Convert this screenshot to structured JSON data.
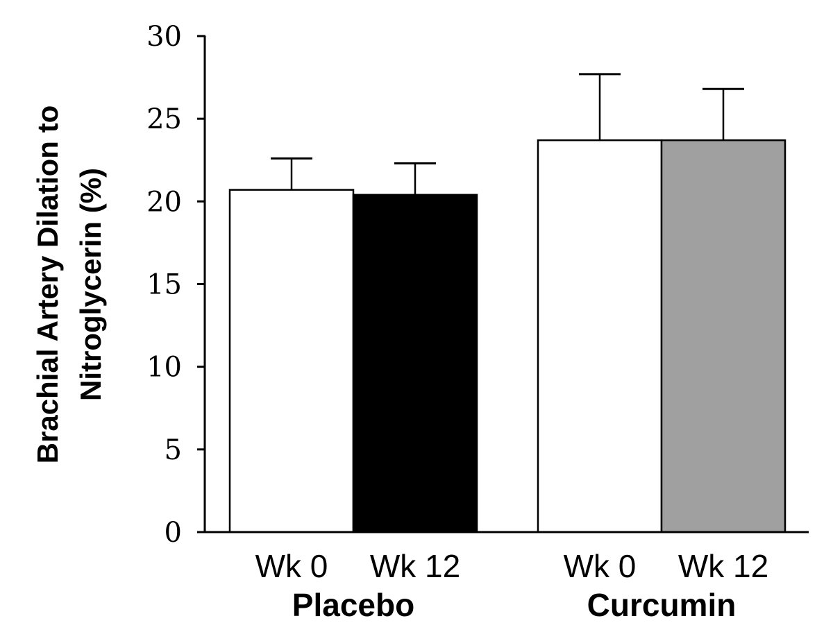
{
  "chart_data": {
    "type": "bar",
    "title": "",
    "ylabel": [
      "Brachial Artery Dilation to",
      "Nitroglycerin (%)"
    ],
    "xlabel": "",
    "ylim": [
      0,
      30
    ],
    "yticks": [
      0,
      5,
      10,
      15,
      20,
      25,
      30
    ],
    "grid": false,
    "legend": "none",
    "groups": [
      {
        "name": "Placebo",
        "bars": [
          {
            "label": "Wk 0",
            "value": 20.7,
            "error": 1.9,
            "color": "#ffffff"
          },
          {
            "label": "Wk 12",
            "value": 20.4,
            "error": 1.9,
            "color": "#000000"
          }
        ]
      },
      {
        "name": "Curcumin",
        "bars": [
          {
            "label": "Wk 0",
            "value": 23.7,
            "error": 4.0,
            "color": "#ffffff"
          },
          {
            "label": "Wk 12",
            "value": 23.7,
            "error": 3.1,
            "color": "#a0a0a0"
          }
        ]
      }
    ]
  }
}
